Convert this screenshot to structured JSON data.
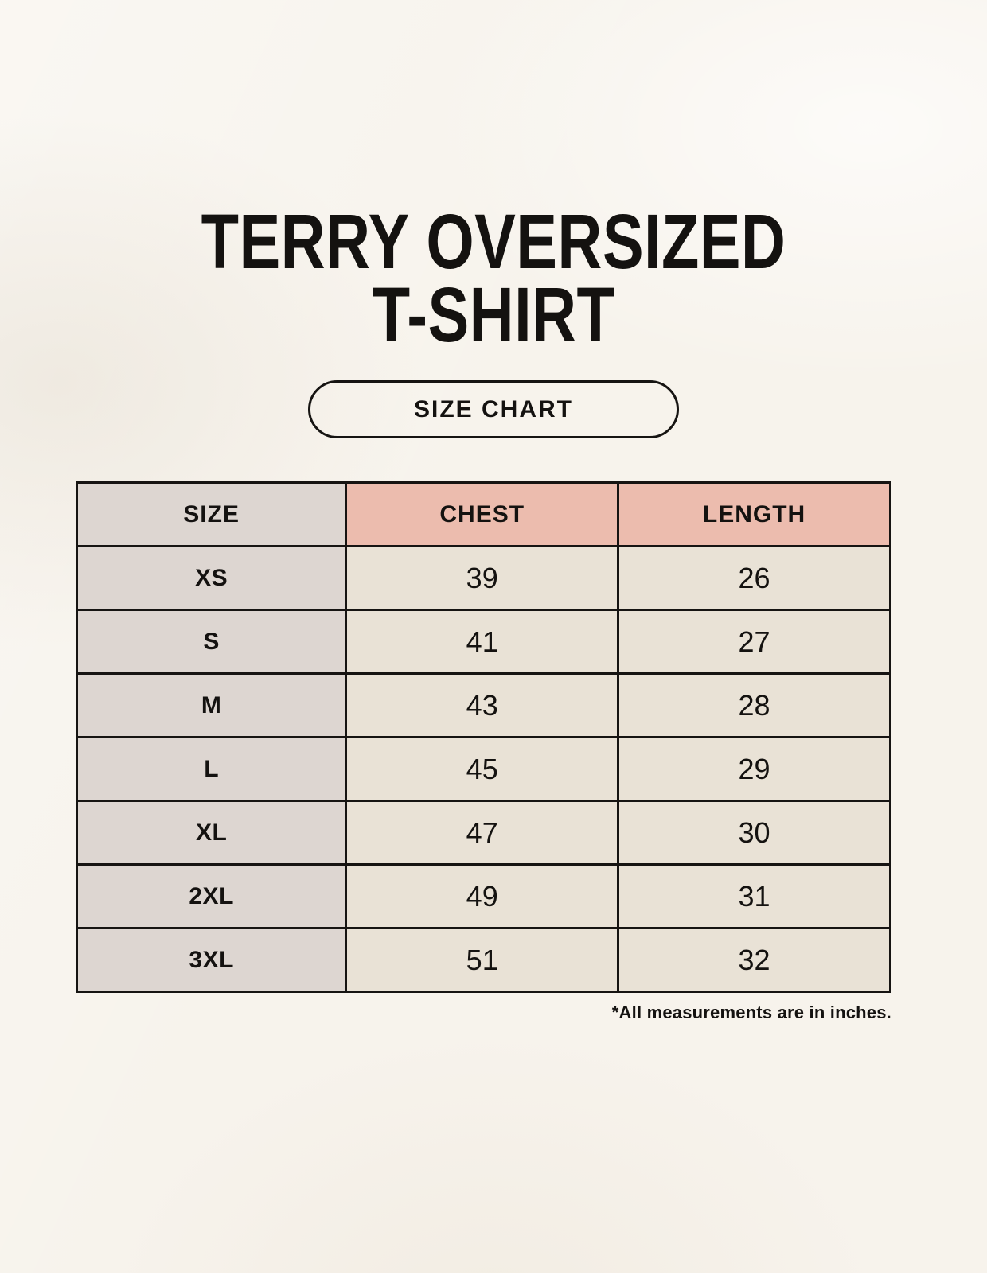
{
  "page": {
    "title": [
      "TERRY OVERSIZED",
      "T-SHIRT"
    ],
    "size_chart_button_label": "SIZE CHART",
    "footnote": "*All measurements are in inches."
  },
  "chart_data": {
    "type": "table",
    "title": "TERRY OVERSIZED T-SHIRT",
    "columns": [
      "SIZE",
      "CHEST",
      "LENGTH"
    ],
    "units": "inches",
    "rows": [
      {
        "size": "XS",
        "chest": 39,
        "length": 26
      },
      {
        "size": "S",
        "chest": 41,
        "length": 27
      },
      {
        "size": "M",
        "chest": 43,
        "length": 28
      },
      {
        "size": "L",
        "chest": 45,
        "length": 29
      },
      {
        "size": "XL",
        "chest": 47,
        "length": 30
      },
      {
        "size": "2XL",
        "chest": 49,
        "length": 31
      },
      {
        "size": "3XL",
        "chest": 51,
        "length": 32
      }
    ]
  },
  "colors": {
    "background": "#f7f3ec",
    "header_pink": "#ecbcae",
    "size_column_gray": "#ddd6d1",
    "cell_cream": "#e9e2d6",
    "border_black": "#161412",
    "text_black": "#141210"
  }
}
